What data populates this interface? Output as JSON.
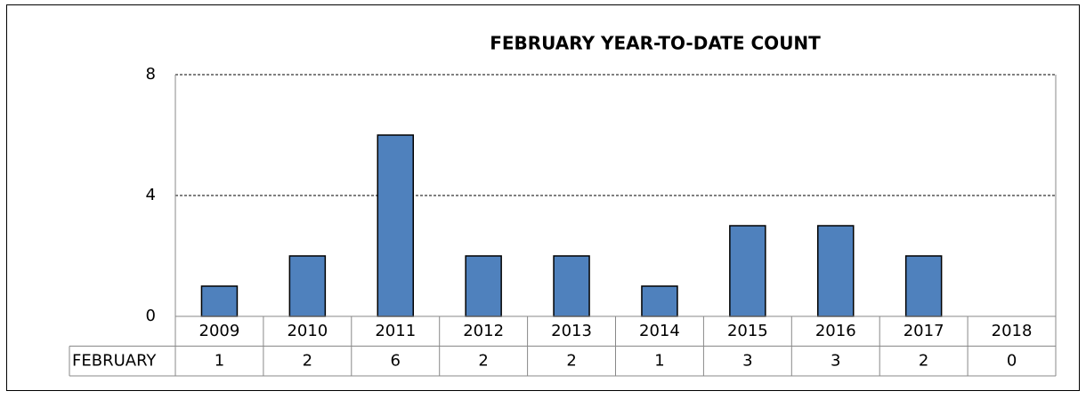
{
  "chart_data": {
    "type": "bar",
    "title": "FEBRUARY YEAR-TO-DATE COUNT",
    "categories": [
      "2009",
      "2010",
      "2011",
      "2012",
      "2013",
      "2014",
      "2015",
      "2016",
      "2017",
      "2018"
    ],
    "series": [
      {
        "name": "FEBRUARY",
        "color": "#4f81bd",
        "values": [
          1,
          2,
          6,
          2,
          2,
          1,
          3,
          3,
          2,
          0
        ]
      }
    ],
    "ylim": [
      0,
      8
    ],
    "yticks": [
      0,
      4,
      8
    ],
    "grid": true
  }
}
